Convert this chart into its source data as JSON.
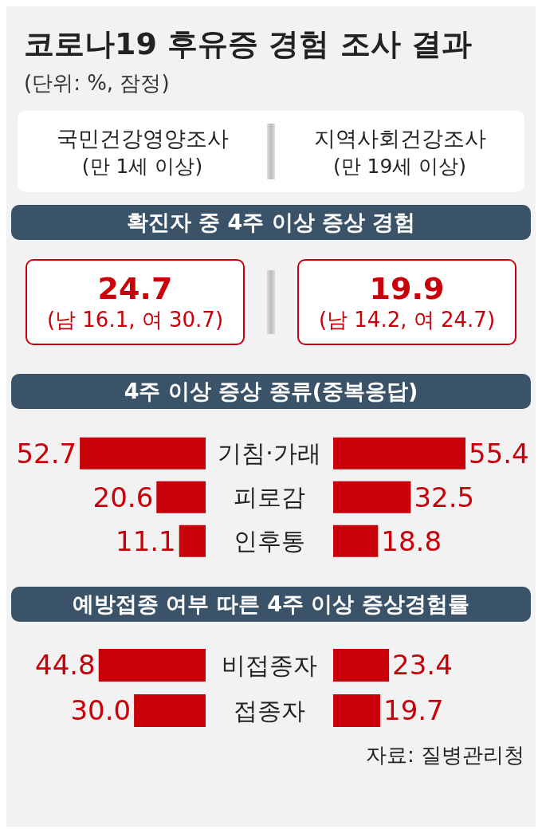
{
  "chart_data": [
    {
      "type": "other",
      "title": "코로나19 후유증 경험 조사 결과",
      "subtitle": "(단위: %, 잠정)",
      "annotations": [
        "국민건강영양조사",
        "(만 1세 이상)",
        "지역사회건강조사",
        "(만 19세 이상)",
        "확진자 중 4주 이상 증상 경험",
        "24.7",
        "(남 16.1, 여 30.7)",
        "19.9",
        "(남 14.2, 여 24.7)"
      ]
    },
    {
      "type": "bar",
      "title": "4주 이상 증상 종류(중복응답)",
      "orientation": "horizontal",
      "categories": [
        "기침·가래",
        "피로감",
        "인후통"
      ],
      "values": [
        52.7,
        20.6,
        11.1
      ],
      "value_labels": [
        "52.7",
        "20.6",
        "11.1"
      ],
      "color": "#c8000a",
      "tick_labels": "y"
    },
    {
      "type": "bar",
      "orientation": "horizontal",
      "categories": [
        null,
        null,
        null
      ],
      "values": [
        55.4,
        32.5,
        18.8
      ],
      "value_labels": [
        "55.4",
        "32.5",
        "18.8"
      ],
      "color": "#c8000a",
      "tick_labels": false
    },
    {
      "type": "bar",
      "title": "예방접종 여부 따른 4주 이상 증상경험률",
      "orientation": "horizontal",
      "categories": [
        "비접종자",
        "접종자"
      ],
      "values": [
        44.8,
        30.0
      ],
      "value_labels": [
        "44.8",
        "30.0"
      ],
      "color": "#c8000a",
      "tick_labels": "y"
    },
    {
      "type": "bar",
      "orientation": "horizontal",
      "categories": [
        null,
        null
      ],
      "values": [
        23.4,
        19.7
      ],
      "value_labels": [
        "23.4",
        "19.7"
      ],
      "color": "#c8000a",
      "tick_labels": false,
      "annotations": [
        "자료: 질병관리청"
      ]
    }
  ]
}
